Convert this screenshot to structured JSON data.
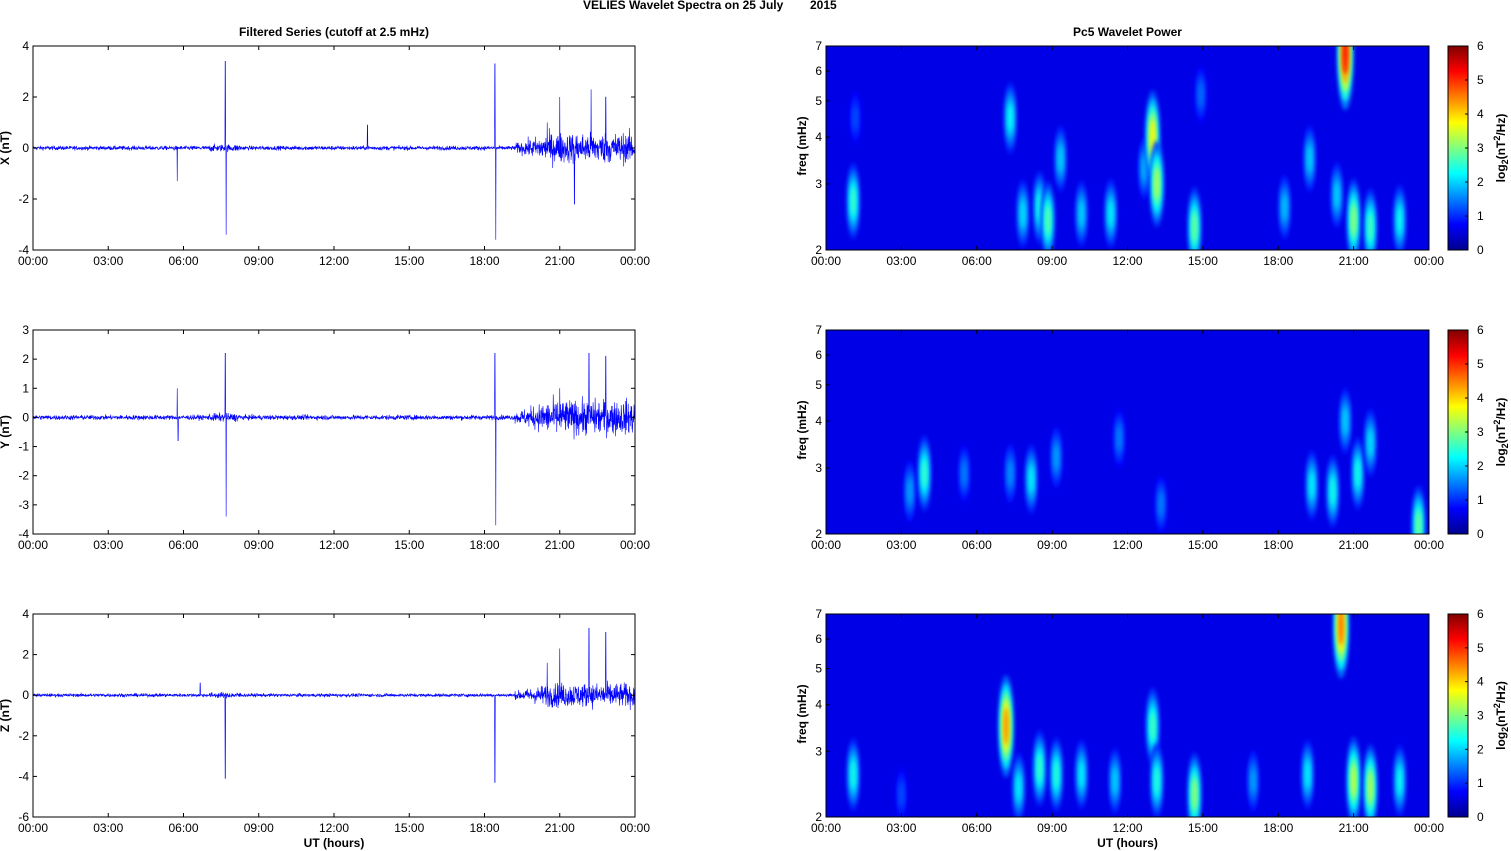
{
  "figure": {
    "title_left": "VELIES Wavelet Spectra on 25 July",
    "title_right": "2015"
  },
  "colors": {
    "trace": "#0000ff",
    "axes": "#000000",
    "background": "#ffffff",
    "colormap": "jet"
  },
  "chart_data": [
    {
      "type": "line",
      "panel": "filtered-x",
      "title": "Filtered Series (cutoff at 2.5 mHz)",
      "xlabel": "",
      "ylabel": "X (nT)",
      "xlim": [
        "00:00",
        "00:00"
      ],
      "ylim": [
        -4,
        4
      ],
      "xticks": [
        "00:00",
        "03:00",
        "06:00",
        "09:00",
        "12:00",
        "15:00",
        "18:00",
        "21:00",
        "00:00"
      ],
      "yticks": [
        "-4",
        "-2",
        "0",
        "2",
        "4"
      ],
      "approx_peaks": [
        {
          "time": "05:45",
          "value": -1.3
        },
        {
          "time": "07:40",
          "value": 3.4
        },
        {
          "time": "07:42",
          "value": -3.4
        },
        {
          "time": "13:20",
          "value": 0.9
        },
        {
          "time": "18:25",
          "value": 3.3
        },
        {
          "time": "18:27",
          "value": -3.6
        },
        {
          "time": "20:30",
          "value": 1.0
        },
        {
          "time": "21:00",
          "value": 2.0
        },
        {
          "time": "21:35",
          "value": -2.2
        },
        {
          "time": "22:15",
          "value": 2.3
        },
        {
          "time": "22:50",
          "value": 2.0
        }
      ]
    },
    {
      "type": "heatmap",
      "panel": "wavelet-x",
      "title": "Pc5 Wavelet Power",
      "xlabel": "",
      "ylabel": "freq (mHz)",
      "yscale": "log",
      "ylim": [
        2,
        7
      ],
      "xticks": [
        "00:00",
        "03:00",
        "06:00",
        "09:00",
        "12:00",
        "15:00",
        "18:00",
        "21:00",
        "00:00"
      ],
      "yticks": [
        "2",
        "3",
        "4",
        "5",
        "6",
        "7"
      ],
      "colorbar_label": "log2(nT^2/Hz)",
      "colorbar_ticks": [
        "0",
        "1",
        "2",
        "3",
        "4",
        "5",
        "6"
      ],
      "clim": [
        0,
        6
      ],
      "blobs": [
        {
          "time": "01:05",
          "freq": 2.7,
          "power": 2.6
        },
        {
          "time": "01:10",
          "freq": 4.5,
          "power": 1.2
        },
        {
          "time": "07:20",
          "freq": 4.5,
          "power": 2.3
        },
        {
          "time": "07:50",
          "freq": 2.5,
          "power": 2.1
        },
        {
          "time": "08:30",
          "freq": 2.6,
          "power": 2.4
        },
        {
          "time": "08:50",
          "freq": 2.4,
          "power": 2.8
        },
        {
          "time": "09:20",
          "freq": 3.5,
          "power": 2.0
        },
        {
          "time": "10:10",
          "freq": 2.5,
          "power": 2.0
        },
        {
          "time": "11:20",
          "freq": 2.5,
          "power": 2.2
        },
        {
          "time": "12:40",
          "freq": 3.3,
          "power": 1.8
        },
        {
          "time": "13:00",
          "freq": 4.0,
          "power": 3.8
        },
        {
          "time": "13:10",
          "freq": 3.0,
          "power": 3.3
        },
        {
          "time": "14:40",
          "freq": 2.3,
          "power": 2.9
        },
        {
          "time": "14:55",
          "freq": 5.2,
          "power": 1.4
        },
        {
          "time": "18:15",
          "freq": 2.6,
          "power": 1.9
        },
        {
          "time": "19:15",
          "freq": 3.5,
          "power": 2.0
        },
        {
          "time": "20:20",
          "freq": 2.8,
          "power": 2.0
        },
        {
          "time": "20:40",
          "freq": 6.7,
          "power": 5.2
        },
        {
          "time": "21:00",
          "freq": 2.4,
          "power": 3.1
        },
        {
          "time": "21:40",
          "freq": 2.3,
          "power": 2.7
        },
        {
          "time": "22:50",
          "freq": 2.4,
          "power": 2.3
        }
      ]
    },
    {
      "type": "line",
      "panel": "filtered-y",
      "title": "",
      "xlabel": "",
      "ylabel": "Y (nT)",
      "ylim": [
        -4,
        3
      ],
      "xticks": [
        "00:00",
        "03:00",
        "06:00",
        "09:00",
        "12:00",
        "15:00",
        "18:00",
        "21:00",
        "00:00"
      ],
      "yticks": [
        "-4",
        "-3",
        "-2",
        "-1",
        "0",
        "1",
        "2",
        "3"
      ],
      "approx_peaks": [
        {
          "time": "05:45",
          "value": 1.0
        },
        {
          "time": "05:47",
          "value": -0.8
        },
        {
          "time": "07:40",
          "value": 2.2
        },
        {
          "time": "07:42",
          "value": -3.4
        },
        {
          "time": "18:25",
          "value": 2.2
        },
        {
          "time": "18:27",
          "value": -3.7
        },
        {
          "time": "21:00",
          "value": 1.0
        },
        {
          "time": "22:10",
          "value": 2.2
        },
        {
          "time": "22:50",
          "value": 2.1
        }
      ]
    },
    {
      "type": "heatmap",
      "panel": "wavelet-y",
      "title": "",
      "xlabel": "",
      "ylabel": "freq (mHz)",
      "yscale": "log",
      "ylim": [
        2,
        7
      ],
      "xticks": [
        "00:00",
        "03:00",
        "06:00",
        "09:00",
        "12:00",
        "15:00",
        "18:00",
        "21:00",
        "00:00"
      ],
      "yticks": [
        "2",
        "3",
        "4",
        "5",
        "6",
        "7"
      ],
      "colorbar_label": "log2(nT^2/Hz)",
      "colorbar_ticks": [
        "0",
        "1",
        "2",
        "3",
        "4",
        "5",
        "6"
      ],
      "clim": [
        0,
        6
      ],
      "blobs": [
        {
          "time": "03:20",
          "freq": 2.6,
          "power": 1.7
        },
        {
          "time": "03:55",
          "freq": 2.9,
          "power": 2.6
        },
        {
          "time": "05:30",
          "freq": 2.9,
          "power": 1.5
        },
        {
          "time": "07:20",
          "freq": 2.9,
          "power": 1.6
        },
        {
          "time": "08:10",
          "freq": 2.8,
          "power": 2.2
        },
        {
          "time": "09:10",
          "freq": 3.2,
          "power": 1.7
        },
        {
          "time": "11:40",
          "freq": 3.6,
          "power": 1.5
        },
        {
          "time": "13:20",
          "freq": 2.4,
          "power": 1.5
        },
        {
          "time": "19:20",
          "freq": 2.7,
          "power": 2.2
        },
        {
          "time": "20:10",
          "freq": 2.6,
          "power": 2.4
        },
        {
          "time": "20:40",
          "freq": 4.0,
          "power": 2.0
        },
        {
          "time": "21:10",
          "freq": 2.9,
          "power": 2.4
        },
        {
          "time": "21:40",
          "freq": 3.5,
          "power": 2.1
        },
        {
          "time": "23:35",
          "freq": 2.1,
          "power": 2.9
        }
      ]
    },
    {
      "type": "line",
      "panel": "filtered-z",
      "title": "",
      "xlabel": "UT (hours)",
      "ylabel": "Z (nT)",
      "ylim": [
        -6,
        4
      ],
      "xticks": [
        "00:00",
        "03:00",
        "06:00",
        "09:00",
        "12:00",
        "15:00",
        "18:00",
        "21:00",
        "00:00"
      ],
      "yticks": [
        "-6",
        "-4",
        "-2",
        "0",
        "2",
        "4"
      ],
      "approx_peaks": [
        {
          "time": "06:40",
          "value": 0.6
        },
        {
          "time": "07:40",
          "value": -4.1
        },
        {
          "time": "18:25",
          "value": -4.3
        },
        {
          "time": "20:30",
          "value": 1.6
        },
        {
          "time": "21:00",
          "value": 2.3
        },
        {
          "time": "22:10",
          "value": 3.3
        },
        {
          "time": "22:50",
          "value": 3.1
        }
      ]
    },
    {
      "type": "heatmap",
      "panel": "wavelet-z",
      "title": "",
      "xlabel": "UT (hours)",
      "ylabel": "freq (mHz)",
      "yscale": "log",
      "ylim": [
        2,
        7
      ],
      "xticks": [
        "00:00",
        "03:00",
        "06:00",
        "09:00",
        "12:00",
        "15:00",
        "18:00",
        "21:00",
        "00:00"
      ],
      "yticks": [
        "2",
        "3",
        "4",
        "5",
        "6",
        "7"
      ],
      "colorbar_label": "log2(nT^2/Hz)",
      "colorbar_ticks": [
        "0",
        "1",
        "2",
        "3",
        "4",
        "5",
        "6"
      ],
      "clim": [
        0,
        6
      ],
      "blobs": [
        {
          "time": "01:05",
          "freq": 2.6,
          "power": 2.4
        },
        {
          "time": "03:00",
          "freq": 2.3,
          "power": 1.2
        },
        {
          "time": "07:10",
          "freq": 3.5,
          "power": 4.4
        },
        {
          "time": "07:40",
          "freq": 2.4,
          "power": 2.2
        },
        {
          "time": "08:30",
          "freq": 2.7,
          "power": 2.6
        },
        {
          "time": "09:10",
          "freq": 2.6,
          "power": 2.5
        },
        {
          "time": "10:10",
          "freq": 2.6,
          "power": 2.2
        },
        {
          "time": "11:30",
          "freq": 2.5,
          "power": 2.0
        },
        {
          "time": "13:00",
          "freq": 3.5,
          "power": 2.7
        },
        {
          "time": "13:10",
          "freq": 2.5,
          "power": 2.5
        },
        {
          "time": "14:40",
          "freq": 2.3,
          "power": 3.1
        },
        {
          "time": "17:00",
          "freq": 2.5,
          "power": 1.7
        },
        {
          "time": "19:10",
          "freq": 2.6,
          "power": 2.2
        },
        {
          "time": "20:30",
          "freq": 6.5,
          "power": 4.6
        },
        {
          "time": "21:00",
          "freq": 2.5,
          "power": 3.4
        },
        {
          "time": "21:40",
          "freq": 2.4,
          "power": 3.3
        },
        {
          "time": "22:50",
          "freq": 2.5,
          "power": 2.3
        }
      ]
    }
  ]
}
